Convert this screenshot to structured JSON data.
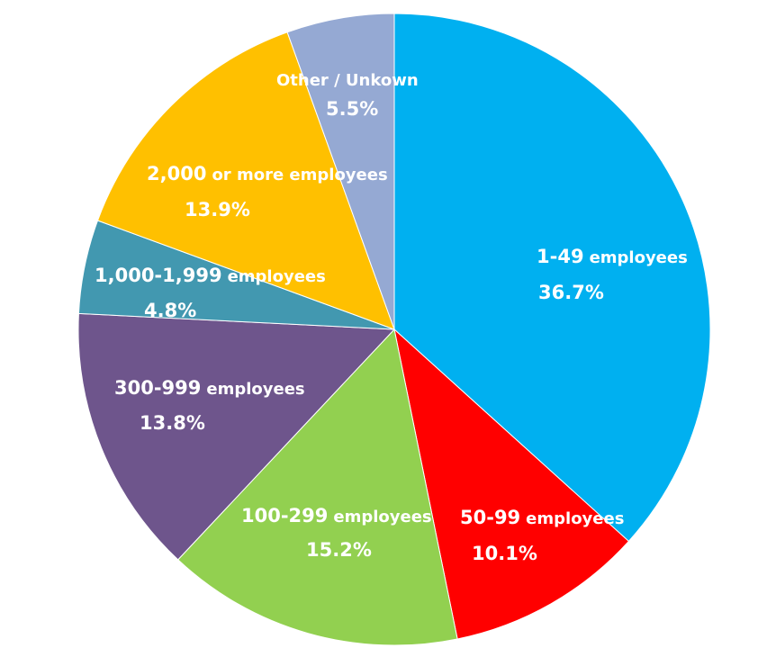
{
  "chart_data": {
    "type": "pie",
    "title": "",
    "start_angle_deg": 0,
    "direction": "clockwise",
    "slices": [
      {
        "label_num": "1-49",
        "label_unit": "employees",
        "value": 36.7,
        "value_text": "36.7%",
        "color": "#00B0F0"
      },
      {
        "label_num": "50-99",
        "label_unit": "employees",
        "value": 10.1,
        "value_text": "10.1%",
        "color": "#FF0000"
      },
      {
        "label_num": "100-299",
        "label_unit": "employees",
        "value": 15.2,
        "value_text": "15.2%",
        "color": "#92D050"
      },
      {
        "label_num": "300-999",
        "label_unit": "employees",
        "value": 13.8,
        "value_text": "13.8%",
        "color": "#6E558C"
      },
      {
        "label_num": "1,000-1,999",
        "label_unit": "employees",
        "value": 4.8,
        "value_text": "4.8%",
        "color": "#4298B0"
      },
      {
        "label_num": "2,000",
        "label_unit": "or more employees",
        "value": 13.9,
        "value_text": "13.9%",
        "color": "#FFC000"
      },
      {
        "label_num": "Other / Unkown",
        "label_unit": "",
        "value": 5.5,
        "value_text": "5.5%",
        "color": "#95A9D3"
      }
    ]
  }
}
